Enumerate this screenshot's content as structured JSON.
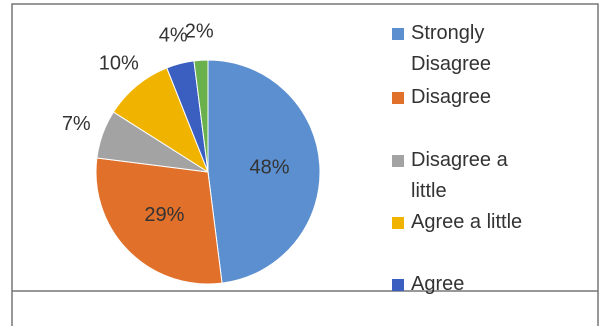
{
  "chart_data": {
    "type": "pie",
    "categories": [
      "Strongly Disagree",
      "Disagree",
      "Disagree a little",
      "Agree a little",
      "Agree",
      null
    ],
    "values": [
      48,
      29,
      7,
      10,
      4,
      2
    ],
    "value_labels": [
      "48%",
      "29%",
      "7%",
      "10%",
      "4%",
      "2%"
    ],
    "colors": [
      "#5b8fd0",
      "#e0702a",
      "#a3a3a3",
      "#f0b400",
      "#3a5fc0",
      "#6ab04c"
    ],
    "legend": "right"
  }
}
